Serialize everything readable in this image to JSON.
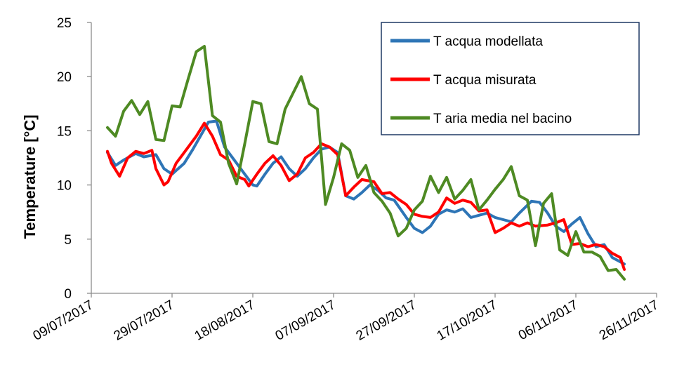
{
  "chart_data": {
    "type": "line",
    "title": "",
    "xlabel": "",
    "ylabel": "Temperature [°C]",
    "ylim": [
      0,
      25
    ],
    "y_ticks": [
      "0",
      "5",
      "10",
      "15",
      "20",
      "25"
    ],
    "x_ticks": [
      "09/07/2017",
      "29/07/2017",
      "18/08/2017",
      "07/09/2017",
      "27/09/2017",
      "17/10/2017",
      "06/11/2017",
      "26/11/2017"
    ],
    "x_tick_dates": [
      "2017-07-09",
      "2017-07-29",
      "2017-08-18",
      "2017-09-07",
      "2017-09-27",
      "2017-10-17",
      "2017-11-06",
      "2017-11-26"
    ],
    "xlim": [
      "2017-07-09",
      "2017-11-26"
    ],
    "grid": false,
    "legend_position": "top-right",
    "series": [
      {
        "name": "T acqua modellata",
        "color": "#2E75B6",
        "x": [
          "2017-07-13",
          "2017-07-15",
          "2017-07-17",
          "2017-07-20",
          "2017-07-22",
          "2017-07-25",
          "2017-07-27",
          "2017-07-29",
          "2017-08-01",
          "2017-08-03",
          "2017-08-05",
          "2017-08-07",
          "2017-08-09",
          "2017-08-11",
          "2017-08-14",
          "2017-08-16",
          "2017-08-18",
          "2017-08-19",
          "2017-08-21",
          "2017-08-23",
          "2017-08-25",
          "2017-08-27",
          "2017-08-29",
          "2017-08-31",
          "2017-09-02",
          "2017-09-04",
          "2017-09-06",
          "2017-09-08",
          "2017-09-10",
          "2017-09-12",
          "2017-09-14",
          "2017-09-16",
          "2017-09-18",
          "2017-09-20",
          "2017-09-22",
          "2017-09-25",
          "2017-09-27",
          "2017-09-29",
          "2017-10-01",
          "2017-10-03",
          "2017-10-05",
          "2017-10-07",
          "2017-10-09",
          "2017-10-11",
          "2017-10-13",
          "2017-10-15",
          "2017-10-17",
          "2017-10-19",
          "2017-10-21",
          "2017-10-23",
          "2017-10-26",
          "2017-10-28",
          "2017-10-30",
          "2017-11-01",
          "2017-11-03",
          "2017-11-05",
          "2017-11-07",
          "2017-11-09",
          "2017-11-11",
          "2017-11-13",
          "2017-11-15",
          "2017-11-18"
        ],
        "values": [
          13.0,
          11.8,
          12.3,
          12.9,
          12.6,
          12.8,
          11.5,
          11.0,
          12.0,
          13.2,
          14.5,
          15.8,
          15.9,
          13.5,
          12.0,
          11.0,
          10.0,
          9.9,
          11.0,
          12.0,
          12.6,
          11.5,
          10.8,
          11.5,
          12.5,
          13.3,
          13.5,
          13.0,
          9.0,
          8.7,
          9.3,
          10.0,
          9.5,
          8.8,
          8.6,
          7.0,
          6.0,
          5.6,
          6.2,
          7.3,
          7.7,
          7.5,
          7.8,
          7.0,
          7.2,
          7.4,
          7.0,
          6.8,
          6.6,
          7.4,
          8.5,
          8.4,
          7.4,
          6.2,
          5.7,
          6.4,
          7.0,
          5.5,
          4.3,
          4.5,
          3.3,
          2.7
        ]
      },
      {
        "name": "T acqua misurata",
        "color": "#FF0000",
        "x": [
          "2017-07-13",
          "2017-07-14",
          "2017-07-16",
          "2017-07-18",
          "2017-07-20",
          "2017-07-22",
          "2017-07-24",
          "2017-07-25",
          "2017-07-27",
          "2017-07-28",
          "2017-07-30",
          "2017-08-01",
          "2017-08-04",
          "2017-08-06",
          "2017-08-08",
          "2017-08-10",
          "2017-08-12",
          "2017-08-14",
          "2017-08-16",
          "2017-08-17",
          "2017-08-19",
          "2017-08-21",
          "2017-08-23",
          "2017-08-25",
          "2017-08-27",
          "2017-08-29",
          "2017-08-31",
          "2017-09-02",
          "2017-09-04",
          "2017-09-06",
          "2017-09-08",
          "2017-09-10",
          "2017-09-12",
          "2017-09-14",
          "2017-09-17",
          "2017-09-19",
          "2017-09-21",
          "2017-09-23",
          "2017-09-25",
          "2017-09-27",
          "2017-09-29",
          "2017-10-01",
          "2017-10-03",
          "2017-10-05",
          "2017-10-07",
          "2017-10-09",
          "2017-10-11",
          "2017-10-13",
          "2017-10-15",
          "2017-10-17",
          "2017-10-19",
          "2017-10-21",
          "2017-10-23",
          "2017-10-25",
          "2017-10-27",
          "2017-10-30",
          "2017-11-01",
          "2017-11-03",
          "2017-11-05",
          "2017-11-07",
          "2017-11-09",
          "2017-11-11",
          "2017-11-13",
          "2017-11-15",
          "2017-11-17",
          "2017-11-18"
        ],
        "values": [
          13.1,
          12.0,
          10.8,
          12.5,
          13.1,
          12.9,
          13.2,
          11.5,
          10.0,
          10.3,
          12.0,
          13.0,
          14.5,
          15.7,
          14.5,
          12.8,
          12.3,
          10.8,
          10.5,
          9.9,
          11.0,
          12.0,
          12.7,
          11.8,
          10.4,
          11.0,
          12.5,
          13.0,
          13.8,
          13.5,
          12.8,
          9.0,
          9.8,
          10.5,
          10.3,
          9.2,
          9.3,
          8.7,
          8.2,
          7.3,
          7.1,
          7.0,
          7.5,
          8.8,
          8.3,
          8.6,
          8.4,
          7.6,
          7.7,
          5.6,
          6.0,
          6.5,
          6.2,
          6.5,
          6.2,
          6.3,
          6.5,
          6.8,
          4.5,
          4.6,
          4.3,
          4.5,
          4.3,
          3.7,
          3.3,
          2.2
        ]
      },
      {
        "name": "T aria media nel bacino",
        "color": "#4E8A23",
        "x": [
          "2017-07-13",
          "2017-07-15",
          "2017-07-17",
          "2017-07-19",
          "2017-07-21",
          "2017-07-23",
          "2017-07-25",
          "2017-07-27",
          "2017-07-29",
          "2017-07-31",
          "2017-08-02",
          "2017-08-04",
          "2017-08-06",
          "2017-08-08",
          "2017-08-10",
          "2017-08-12",
          "2017-08-14",
          "2017-08-16",
          "2017-08-18",
          "2017-08-20",
          "2017-08-22",
          "2017-08-24",
          "2017-08-26",
          "2017-08-28",
          "2017-08-30",
          "2017-09-01",
          "2017-09-03",
          "2017-09-05",
          "2017-09-07",
          "2017-09-09",
          "2017-09-11",
          "2017-09-13",
          "2017-09-15",
          "2017-09-17",
          "2017-09-19",
          "2017-09-21",
          "2017-09-23",
          "2017-09-25",
          "2017-09-27",
          "2017-09-29",
          "2017-10-01",
          "2017-10-03",
          "2017-10-05",
          "2017-10-07",
          "2017-10-09",
          "2017-10-11",
          "2017-10-13",
          "2017-10-15",
          "2017-10-17",
          "2017-10-19",
          "2017-10-21",
          "2017-10-23",
          "2017-10-25",
          "2017-10-27",
          "2017-10-29",
          "2017-10-31",
          "2017-11-02",
          "2017-11-04",
          "2017-11-06",
          "2017-11-08",
          "2017-11-10",
          "2017-11-12",
          "2017-11-14",
          "2017-11-16",
          "2017-11-18"
        ],
        "values": [
          15.3,
          14.5,
          16.8,
          17.8,
          16.5,
          17.7,
          14.2,
          14.1,
          17.3,
          17.2,
          19.8,
          22.3,
          22.8,
          16.4,
          15.8,
          12.0,
          10.1,
          13.8,
          17.7,
          17.5,
          14.0,
          13.8,
          17.0,
          18.5,
          20.0,
          17.5,
          17.0,
          8.2,
          10.7,
          13.8,
          13.2,
          10.7,
          11.8,
          9.3,
          8.5,
          7.4,
          5.3,
          6.0,
          7.7,
          8.5,
          10.8,
          9.3,
          10.7,
          8.7,
          9.5,
          10.5,
          7.7,
          8.6,
          9.6,
          10.5,
          11.7,
          9.0,
          8.6,
          4.4,
          8.3,
          9.2,
          4.0,
          3.5,
          5.7,
          3.8,
          3.8,
          3.4,
          2.1,
          2.2,
          1.3
        ]
      }
    ]
  }
}
